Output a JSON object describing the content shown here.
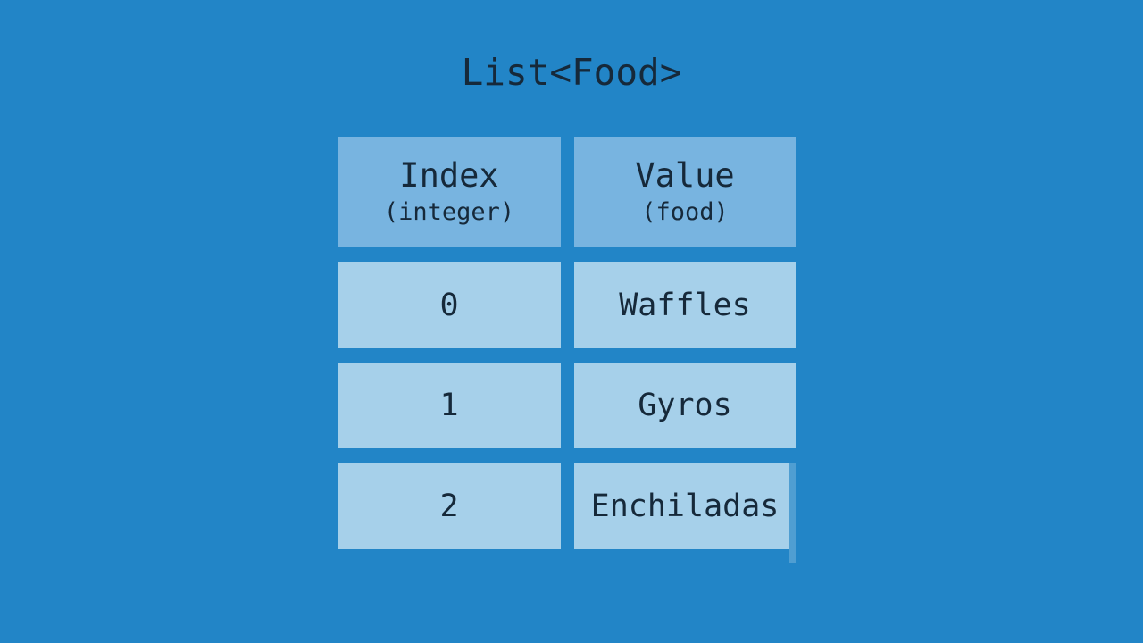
{
  "title": "List<Food>",
  "colors": {
    "background": "#2285c7",
    "header_cell": "#78b4e0",
    "data_cell": "#a6d0ea",
    "text": "#16293a",
    "artifact": "#4f9ed2"
  },
  "table": {
    "columns": [
      {
        "label": "Index",
        "type": "(integer)"
      },
      {
        "label": "Value",
        "type": "(food)"
      }
    ],
    "rows": [
      {
        "index": "0",
        "value": "Waffles"
      },
      {
        "index": "1",
        "value": "Gyros"
      },
      {
        "index": "2",
        "value": "Enchiladas"
      }
    ]
  }
}
